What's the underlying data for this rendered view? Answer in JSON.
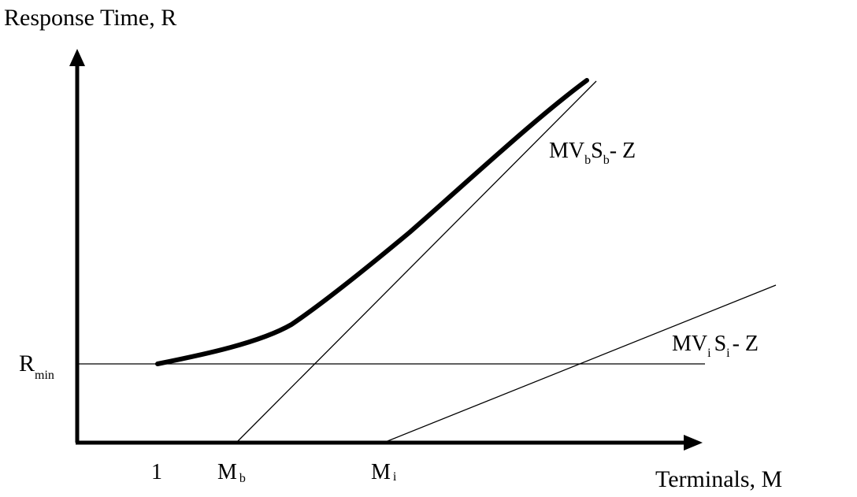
{
  "y_axis_label": "Response Time, R",
  "x_axis_label": "Terminals, M",
  "rmin": {
    "main": "R",
    "sub": "min"
  },
  "tick_one": "1",
  "mb": {
    "main": "M",
    "sub": "b"
  },
  "mi": {
    "main": "M",
    "sub": "i"
  },
  "bottleneck_line_label": {
    "p1": "MV",
    "s1": "b",
    "p2": "S",
    "s2": "b",
    "p3": "- Z"
  },
  "secondary_line_label": {
    "p1": "MV",
    "s1": "i",
    "p2": "S",
    "s2": "i",
    "p3": "- Z"
  },
  "colors": {
    "ink": "#000000",
    "background": "#ffffff"
  }
}
